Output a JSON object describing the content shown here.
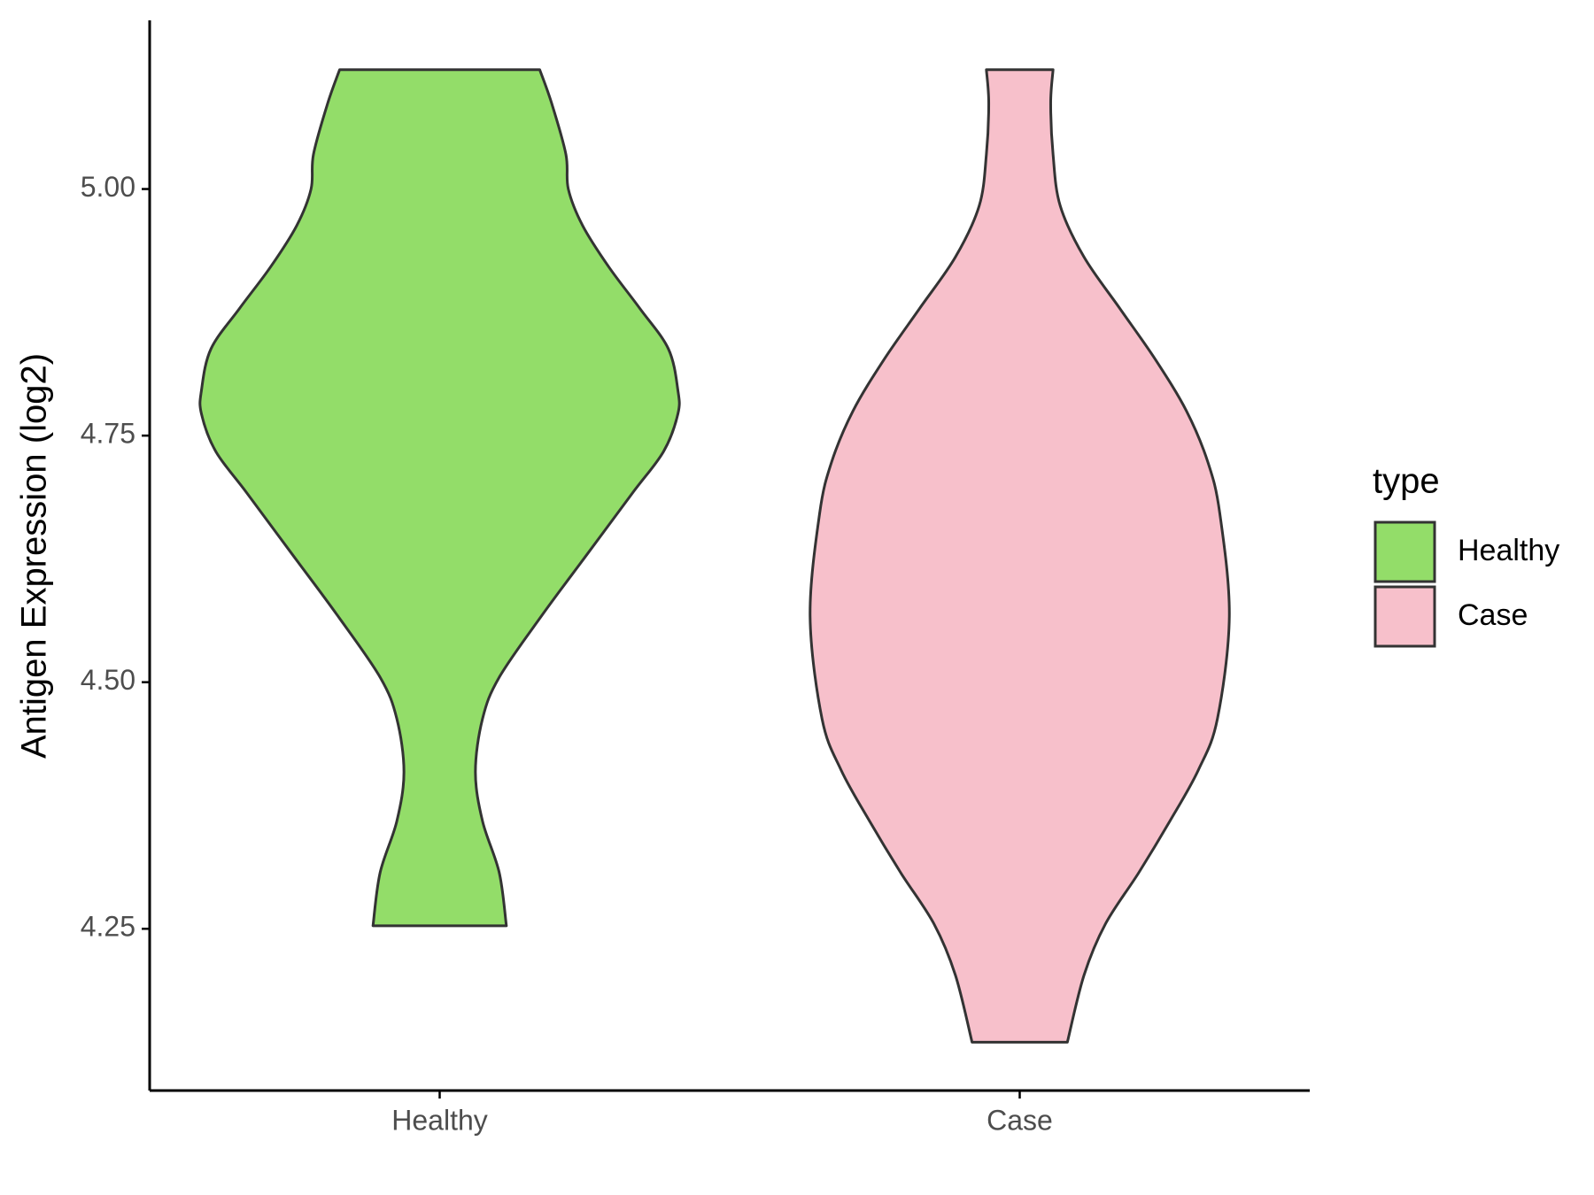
{
  "chart_data": {
    "type": "violin",
    "y_label": "Antigen Expression (log2)",
    "legend_title": "type",
    "legend_position": "right",
    "categories": [
      "Healthy",
      "Case"
    ],
    "ylim": [
      4.086,
      5.171
    ],
    "yticks": [
      4.25,
      {
        "value": 4.5,
        "label": "4.50"
      },
      4.75,
      {
        "value": 5,
        "label": "5.00"
      }
    ],
    "series": [
      {
        "name": "Healthy",
        "color": "#93dd69",
        "y": [
          5.121,
          5.087,
          5.035,
          5.0,
          4.963,
          4.921,
          4.879,
          4.838,
          4.796,
          4.772,
          4.734,
          4.692,
          4.63,
          4.568,
          4.505,
          4.463,
          4.409,
          4.359,
          4.307,
          4.253
        ],
        "density": [
          0.42,
          0.47,
          0.53,
          0.54,
          0.6,
          0.71,
          0.84,
          0.96,
          1.0,
          1.0,
          0.94,
          0.81,
          0.62,
          0.43,
          0.25,
          0.18,
          0.15,
          0.18,
          0.25,
          0.28
        ]
      },
      {
        "name": "Case",
        "color": "#f7c0cb",
        "y": [
          5.121,
          5.087,
          5.035,
          4.983,
          4.931,
          4.879,
          4.827,
          4.775,
          4.723,
          4.671,
          4.567,
          4.463,
          4.411,
          4.359,
          4.307,
          4.255,
          4.203,
          4.135
        ],
        "density": [
          0.14,
          0.13,
          0.14,
          0.17,
          0.27,
          0.42,
          0.57,
          0.7,
          0.79,
          0.84,
          0.88,
          0.83,
          0.75,
          0.63,
          0.5,
          0.36,
          0.27,
          0.2
        ]
      }
    ]
  }
}
